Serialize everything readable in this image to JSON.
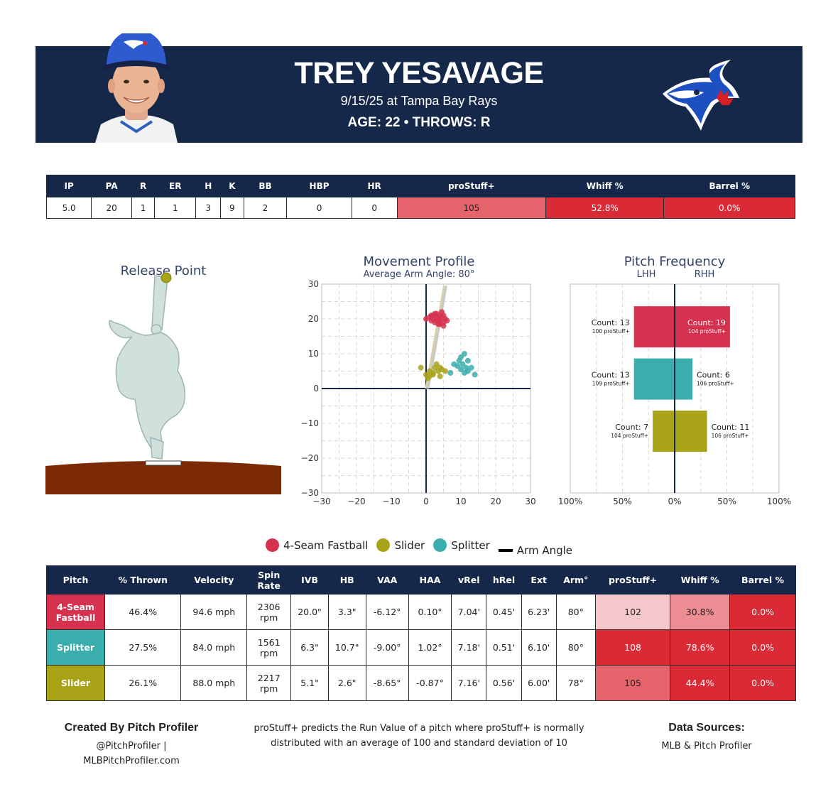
{
  "header": {
    "name": "TREY YESAVAGE",
    "game": "9/15/25 at Tampa Bay Rays",
    "bio": "AGE: 22 • THROWS: R"
  },
  "colors": {
    "navy": "#152849",
    "fastball": "#d6324f",
    "slider": "#a8a317",
    "splitter": "#3aadad",
    "dirt": "#7b2a05"
  },
  "summary": {
    "headers": [
      "IP",
      "PA",
      "R",
      "ER",
      "H",
      "K",
      "BB",
      "HBP",
      "HR",
      "proStuff+",
      "Whiff %",
      "Barrel %"
    ],
    "values": [
      "5.0",
      "20",
      "1",
      "1",
      "3",
      "9",
      "2",
      "0",
      "0",
      "105",
      "52.8%",
      "0.0%"
    ],
    "value_colors": [
      "",
      "",
      "",
      "",
      "",
      "",
      "",
      "",
      "",
      "#e5646b",
      "#d92a35",
      "#d92a35"
    ]
  },
  "release_point": {
    "title": "Release Point"
  },
  "movement": {
    "title": "Movement Profile",
    "subtitle": "Average Arm Angle: 80°"
  },
  "frequency": {
    "title": "Pitch Frequency",
    "lhh_label": "LHH",
    "rhh_label": "RHH"
  },
  "legend": {
    "items": [
      {
        "label": "4-Seam Fastball",
        "type": "dot",
        "color": "#d6324f"
      },
      {
        "label": "Slider",
        "type": "dot",
        "color": "#a8a317"
      },
      {
        "label": "Splitter",
        "type": "dot",
        "color": "#3aadad"
      },
      {
        "label": "Arm Angle",
        "type": "line",
        "color": "#000000"
      }
    ]
  },
  "pitch_table": {
    "headers": [
      "Pitch",
      "% Thrown",
      "Velocity",
      "Spin Rate",
      "IVB",
      "HB",
      "VAA",
      "HAA",
      "vRel",
      "hRel",
      "Ext",
      "Arm°",
      "proStuff+",
      "Whiff %",
      "Barrel %"
    ],
    "rows": [
      {
        "pitch": "4-Seam Fastball",
        "color": "#d6324f",
        "cells": [
          "46.4%",
          "94.6 mph",
          "2306 rpm",
          "20.0\"",
          "3.3\"",
          "-6.12°",
          "0.10°",
          "7.04'",
          "0.45'",
          "6.23'",
          "80°",
          "102",
          "30.8%",
          "0.0%"
        ],
        "cell_colors": [
          "#f4c7ca",
          "#eb8d93",
          "#d92a35"
        ]
      },
      {
        "pitch": "Splitter",
        "color": "#3aadad",
        "cells": [
          "27.5%",
          "84.0 mph",
          "1561 rpm",
          "6.3\"",
          "10.7\"",
          "-9.00°",
          "1.02°",
          "7.18'",
          "0.51'",
          "6.10'",
          "80°",
          "108",
          "78.6%",
          "0.0%"
        ],
        "cell_colors": [
          "#d92a35",
          "#d92a35",
          "#d92a35"
        ]
      },
      {
        "pitch": "Slider",
        "color": "#a8a317",
        "cells": [
          "26.1%",
          "88.0 mph",
          "2217 rpm",
          "5.1\"",
          "2.6\"",
          "-8.65°",
          "-0.87°",
          "7.16'",
          "0.56'",
          "6.00'",
          "78°",
          "105",
          "44.4%",
          "0.0%"
        ],
        "cell_colors": [
          "#e5646b",
          "#d92a35",
          "#d92a35"
        ]
      }
    ]
  },
  "footer": {
    "created_by": "Created By Pitch Profiler",
    "handle": "@PitchProfiler |",
    "site": "MLBPitchProfiler.com",
    "description_1": "proStuff+ predicts the Run Value of a pitch where proStuff+ is normally",
    "description_2": "distributed with an average of 100 and standard deviation of 10",
    "sources_title": "Data Sources:",
    "sources": "MLB & Pitch Profiler"
  },
  "chart_data": [
    {
      "type": "scatter",
      "title": "Movement Profile",
      "subtitle": "Average Arm Angle: 80°",
      "xlim": [
        -30,
        30
      ],
      "ylim": [
        -30,
        30
      ],
      "x_ticks": [
        -30,
        -20,
        -10,
        0,
        10,
        20,
        30
      ],
      "y_ticks": [
        -30,
        -20,
        -10,
        0,
        10,
        20,
        30
      ],
      "grid": true,
      "arm_angle_deg": 80,
      "series": [
        {
          "name": "4-Seam Fastball",
          "color": "#d6324f",
          "points": [
            [
              0,
              20
            ],
            [
              1,
              20.5
            ],
            [
              1.5,
              19.5
            ],
            [
              2,
              21
            ],
            [
              2,
              20
            ],
            [
              2.5,
              19
            ],
            [
              3,
              21.5
            ],
            [
              3,
              20.5
            ],
            [
              3,
              19.5
            ],
            [
              3.5,
              20
            ],
            [
              4,
              21
            ],
            [
              4,
              19.5
            ],
            [
              4,
              18.5
            ],
            [
              4.5,
              20.5
            ],
            [
              5,
              21
            ],
            [
              5,
              19
            ],
            [
              5.5,
              20
            ],
            [
              6,
              19.5
            ],
            [
              3.5,
              18.5
            ],
            [
              2.5,
              21.5
            ],
            [
              4.5,
              22
            ],
            [
              1.5,
              21
            ],
            [
              5,
              18
            ]
          ]
        },
        {
          "name": "Slider",
          "color": "#a8a317",
          "points": [
            [
              -1.5,
              6
            ],
            [
              0,
              4
            ],
            [
              1,
              5
            ],
            [
              1,
              3.5
            ],
            [
              2,
              4.5
            ],
            [
              2.5,
              6
            ],
            [
              3,
              7
            ],
            [
              3.5,
              5
            ],
            [
              4,
              3.5
            ],
            [
              4,
              6
            ],
            [
              4.5,
              5.5
            ],
            [
              5.5,
              5
            ],
            [
              0.5,
              3
            ],
            [
              2,
              4
            ]
          ]
        },
        {
          "name": "Splitter",
          "color": "#3aadad",
          "points": [
            [
              7,
              4.5
            ],
            [
              8,
              7
            ],
            [
              9,
              6.5
            ],
            [
              9.5,
              8
            ],
            [
              10,
              5.5
            ],
            [
              10.5,
              7
            ],
            [
              11,
              10
            ],
            [
              11.5,
              6
            ],
            [
              12,
              8
            ],
            [
              12,
              5
            ],
            [
              13,
              6
            ],
            [
              14,
              4
            ],
            [
              11,
              4.5
            ],
            [
              10,
              9
            ]
          ]
        }
      ]
    },
    {
      "type": "bar",
      "title": "Pitch Frequency",
      "xlim": [
        -100,
        100
      ],
      "x_ticks": [
        "100%",
        "50%",
        "0%",
        "50%",
        "100%"
      ],
      "categories": [
        "4-Seam Fastball",
        "Splitter",
        "Slider"
      ],
      "series": [
        {
          "name": "LHH",
          "values": [
            39,
            39,
            21
          ],
          "counts": [
            13,
            13,
            7
          ],
          "prostuff": [
            100,
            109,
            104
          ]
        },
        {
          "name": "RHH",
          "values": [
            53,
            17,
            31
          ],
          "counts": [
            19,
            6,
            11
          ],
          "prostuff": [
            104,
            106,
            106
          ]
        }
      ],
      "count_prefix": "Count: ",
      "prostuff_suffix": " proStuff+"
    }
  ]
}
